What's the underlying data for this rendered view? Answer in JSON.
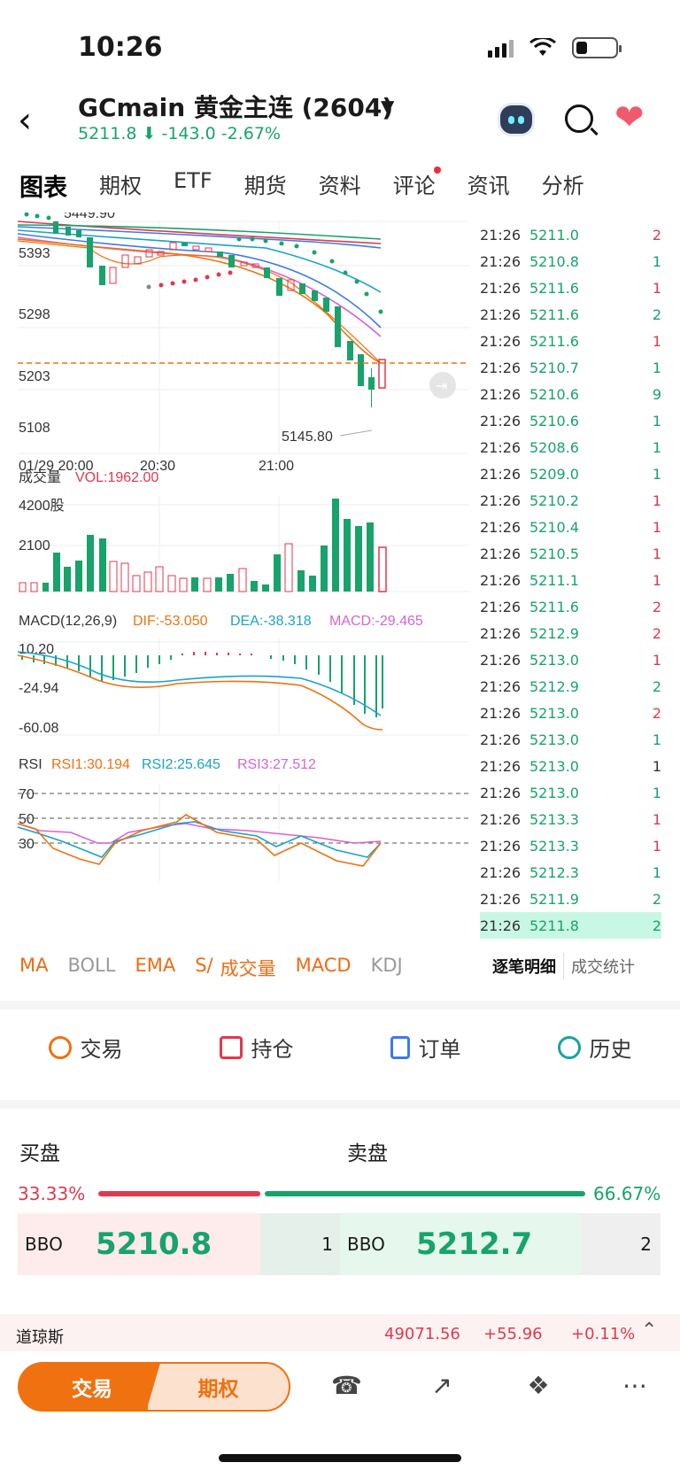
{
  "status": {
    "time": "10:26"
  },
  "header": {
    "title": "GCmain  黄金主连 (2604)",
    "quote": "5211.8 ⬇ -143.0  -2.67%"
  },
  "tabs": [
    {
      "label": "图表"
    },
    {
      "label": "期权"
    },
    {
      "label": "ETF"
    },
    {
      "label": "期货"
    },
    {
      "label": "资料"
    },
    {
      "label": "评论"
    },
    {
      "label": "资讯"
    },
    {
      "label": "分析"
    }
  ],
  "chart": {
    "price_axis": [
      "5393",
      "5298",
      "5203",
      "5108"
    ],
    "high_label": "5449.90",
    "low_label": "5145.80",
    "time_axis": [
      "01/29 20:00",
      "20:30",
      "21:00"
    ],
    "volume": {
      "title": "成交量",
      "vol": "VOL:1962.00",
      "axis_top": "4200股",
      "axis_mid": "2100"
    },
    "macd": {
      "title": "MACD(12,26,9)",
      "dif": "DIF:-53.050",
      "dea": "DEA:-38.318",
      "macd": "MACD:-29.465",
      "axis": [
        "10.20",
        "-24.94",
        "-60.08"
      ]
    },
    "rsi": {
      "title": "RSI",
      "rsi1": "RSI1:30.194",
      "rsi2": "RSI2:25.645",
      "rsi3": "RSI3:27.512",
      "axis": [
        "70",
        "50",
        "30"
      ]
    }
  },
  "ticks": [
    {
      "t": "21:26",
      "p": "5211.0",
      "v": "2",
      "c": "#e0394d"
    },
    {
      "t": "21:26",
      "p": "5210.8",
      "v": "1",
      "c": "#17a36b"
    },
    {
      "t": "21:26",
      "p": "5211.6",
      "v": "1",
      "c": "#e0394d"
    },
    {
      "t": "21:26",
      "p": "5211.6",
      "v": "2",
      "c": "#17a36b"
    },
    {
      "t": "21:26",
      "p": "5211.6",
      "v": "1",
      "c": "#e0394d"
    },
    {
      "t": "21:26",
      "p": "5210.7",
      "v": "1",
      "c": "#17a36b"
    },
    {
      "t": "21:26",
      "p": "5210.6",
      "v": "9",
      "c": "#17a36b"
    },
    {
      "t": "21:26",
      "p": "5210.6",
      "v": "1",
      "c": "#17a36b"
    },
    {
      "t": "21:26",
      "p": "5208.6",
      "v": "1",
      "c": "#17a36b"
    },
    {
      "t": "21:26",
      "p": "5209.0",
      "v": "1",
      "c": "#17a36b"
    },
    {
      "t": "21:26",
      "p": "5210.2",
      "v": "1",
      "c": "#e0394d"
    },
    {
      "t": "21:26",
      "p": "5210.4",
      "v": "1",
      "c": "#e0394d"
    },
    {
      "t": "21:26",
      "p": "5210.5",
      "v": "1",
      "c": "#e0394d"
    },
    {
      "t": "21:26",
      "p": "5211.1",
      "v": "1",
      "c": "#e0394d"
    },
    {
      "t": "21:26",
      "p": "5211.6",
      "v": "2",
      "c": "#e0394d"
    },
    {
      "t": "21:26",
      "p": "5212.9",
      "v": "2",
      "c": "#e0394d"
    },
    {
      "t": "21:26",
      "p": "5213.0",
      "v": "1",
      "c": "#e0394d"
    },
    {
      "t": "21:26",
      "p": "5212.9",
      "v": "2",
      "c": "#17a36b"
    },
    {
      "t": "21:26",
      "p": "5213.0",
      "v": "2",
      "c": "#e0394d"
    },
    {
      "t": "21:26",
      "p": "5213.0",
      "v": "1",
      "c": "#17a36b"
    },
    {
      "t": "21:26",
      "p": "5213.0",
      "v": "1",
      "c": "#333333"
    },
    {
      "t": "21:26",
      "p": "5213.0",
      "v": "1",
      "c": "#17a36b"
    },
    {
      "t": "21:26",
      "p": "5213.3",
      "v": "1",
      "c": "#e0394d"
    },
    {
      "t": "21:26",
      "p": "5213.3",
      "v": "1",
      "c": "#e0394d"
    },
    {
      "t": "21:26",
      "p": "5212.3",
      "v": "1",
      "c": "#17a36b"
    },
    {
      "t": "21:26",
      "p": "5211.9",
      "v": "2",
      "c": "#17a36b"
    },
    {
      "t": "21:26",
      "p": "5211.8",
      "v": "2",
      "c": "#17a36b"
    }
  ],
  "indicators": [
    {
      "label": "MA",
      "on": true
    },
    {
      "label": "BOLL",
      "on": false
    },
    {
      "label": "EMA",
      "on": true
    },
    {
      "label": "S/",
      "on": true
    },
    {
      "label": "成交量",
      "on": true
    },
    {
      "label": "MACD",
      "on": true
    },
    {
      "label": "KDJ",
      "on": false
    }
  ],
  "sub_tabs": [
    "逐笔明细",
    "成交统计"
  ],
  "actions": [
    {
      "label": "交易",
      "color": "#f0710f"
    },
    {
      "label": "持仓",
      "color": "#e0394d"
    },
    {
      "label": "订单",
      "color": "#3b7be8"
    },
    {
      "label": "历史",
      "color": "#17a3a0"
    }
  ],
  "orderbook": {
    "buy_label": "买盘",
    "sell_label": "卖盘",
    "buy_pct": "33.33%",
    "sell_pct": "66.67%",
    "bbo_label": "BBO",
    "bid": "5210.8",
    "bid_vol": "1",
    "ask": "5212.7",
    "ask_vol": "2"
  },
  "ticker": {
    "name": "道琼斯",
    "value": "49071.56",
    "change": "+55.96",
    "pct": "+0.11%"
  },
  "bottom": {
    "trade": "交易",
    "options": "期权"
  },
  "colors": {
    "up": "#e0394d",
    "down": "#17a36b",
    "accent": "#f0710f"
  }
}
